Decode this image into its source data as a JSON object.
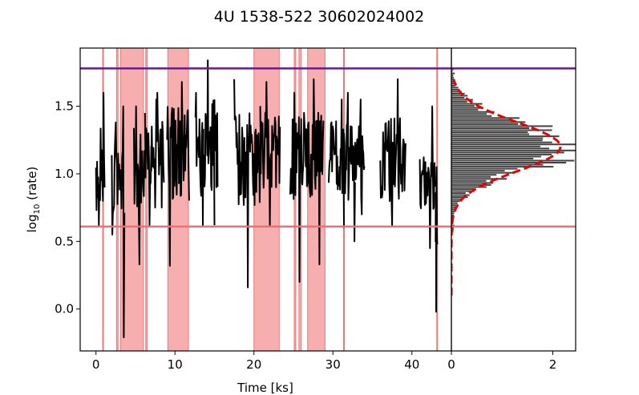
{
  "chart_data": [
    {
      "id": "lightcurve",
      "type": "line",
      "title": "4U 1538-522 30602024002",
      "xlabel": "Time [ks]",
      "ylabel_main": "log",
      "ylabel_sub": "10",
      "ylabel_tail": " (rate)",
      "xlim": [
        -2.0,
        45.0
      ],
      "ylim": [
        -0.31,
        1.93
      ],
      "xticks": [
        0,
        10,
        20,
        30,
        40
      ],
      "xtick_labels": [
        "0",
        "10",
        "20",
        "30",
        "40"
      ],
      "yticks": [
        0.0,
        0.5,
        1.0,
        1.5
      ],
      "ytick_labels": [
        "0.0",
        "0.5",
        "1.0",
        "1.5"
      ],
      "grid": false,
      "upper_threshold": 1.78,
      "lower_threshold": 0.61,
      "colors": {
        "series": "#000000",
        "upper_line": "#6a1b8a",
        "lower_line": "#f07070",
        "excluded": "#f4a0a0"
      },
      "excluded_intervals": [
        [
          2.6,
          2.8
        ],
        [
          3.1,
          6.0
        ],
        [
          6.3,
          6.5
        ],
        [
          9.1,
          11.7
        ],
        [
          20.0,
          23.2
        ],
        [
          25.1,
          25.3
        ],
        [
          25.7,
          26.0
        ],
        [
          26.8,
          29.0
        ]
      ],
      "flare_lines": [
        0.9,
        31.4,
        43.2
      ],
      "segments": [
        {
          "x": [
            0.0,
            1.1
          ],
          "mean": 1.05,
          "spread": 0.33,
          "max": 1.6,
          "min": 0.62
        },
        {
          "x": [
            2.0,
            2.8
          ],
          "mean": 0.98,
          "spread": 0.3,
          "max": 1.38,
          "min": 0.55
        },
        {
          "x": [
            2.8,
            3.6
          ],
          "mean": 1.0,
          "spread": 0.35,
          "max": 1.5,
          "min": -0.21
        },
        {
          "x": [
            4.8,
            6.2
          ],
          "mean": 1.0,
          "spread": 0.35,
          "max": 1.5,
          "min": 0.33
        },
        {
          "x": [
            6.2,
            7.0
          ],
          "mean": 1.05,
          "spread": 0.3,
          "max": 1.45,
          "min": 0.62
        },
        {
          "x": [
            7.0,
            7.7
          ],
          "mean": 1.1,
          "spread": 0.3,
          "max": 1.55,
          "min": 0.75
        },
        {
          "x": [
            7.7,
            8.6
          ],
          "mean": 1.15,
          "spread": 0.3,
          "max": 1.6,
          "min": 0.75
        },
        {
          "x": [
            9.0,
            11.8
          ],
          "mean": 1.15,
          "spread": 0.35,
          "max": 1.68,
          "min": 0.32
        },
        {
          "x": [
            12.6,
            13.6
          ],
          "mean": 1.15,
          "spread": 0.32,
          "max": 1.6,
          "min": 0.62
        },
        {
          "x": [
            13.6,
            15.0
          ],
          "mean": 1.2,
          "spread": 0.35,
          "max": 1.84,
          "min": 0.62
        },
        {
          "x": [
            15.0,
            15.4
          ],
          "mean": 1.2,
          "spread": 0.3,
          "max": 1.55,
          "min": 0.9
        },
        {
          "x": [
            17.5,
            20.8
          ],
          "mean": 1.1,
          "spread": 0.35,
          "max": 1.7,
          "min": 0.16
        },
        {
          "x": [
            20.8,
            23.3
          ],
          "mean": 1.2,
          "spread": 0.32,
          "max": 1.68,
          "min": 0.62
        },
        {
          "x": [
            24.6,
            26.2
          ],
          "mean": 1.1,
          "spread": 0.32,
          "max": 1.6,
          "min": 0.2
        },
        {
          "x": [
            26.2,
            28.8
          ],
          "mean": 1.15,
          "spread": 0.32,
          "max": 1.7,
          "min": 0.33
        },
        {
          "x": [
            29.4,
            31.4
          ],
          "mean": 1.1,
          "spread": 0.3,
          "max": 1.55,
          "min": 0.6
        },
        {
          "x": [
            31.4,
            32.8
          ],
          "mean": 1.1,
          "spread": 0.3,
          "max": 1.6,
          "min": 0.5
        },
        {
          "x": [
            32.8,
            34.0
          ],
          "mean": 1.1,
          "spread": 0.3,
          "max": 1.55,
          "min": 0.7
        },
        {
          "x": [
            36.0,
            39.2
          ],
          "mean": 1.1,
          "spread": 0.32,
          "max": 1.7,
          "min": 0.62
        },
        {
          "x": [
            41.0,
            43.0
          ],
          "mean": 1.0,
          "spread": 0.32,
          "max": 1.5,
          "min": 0.45
        },
        {
          "x": [
            43.0,
            43.2
          ],
          "mean": 0.7,
          "spread": 0.3,
          "max": 1.05,
          "min": -0.02
        }
      ]
    },
    {
      "id": "histogram",
      "type": "bar",
      "orientation": "horizontal",
      "xlim": [
        0.0,
        2.45
      ],
      "ylim": [
        -0.31,
        1.93
      ],
      "xticks": [
        0,
        2
      ],
      "xtick_labels": [
        "0",
        "2"
      ],
      "grid": false,
      "bin_range": [
        0.55,
        1.78
      ],
      "bin_count": 82,
      "gaussian_fit": {
        "mean": 1.2,
        "sigma": 0.18,
        "peak": 2.15,
        "y_range": [
          0.1,
          1.7
        ]
      },
      "upper_threshold": 1.78,
      "lower_threshold": 0.61,
      "colors": {
        "bars": "#444444",
        "fit": "#ee0000",
        "upper_line": "#6a1b8a",
        "lower_line": "#f07070"
      }
    }
  ]
}
